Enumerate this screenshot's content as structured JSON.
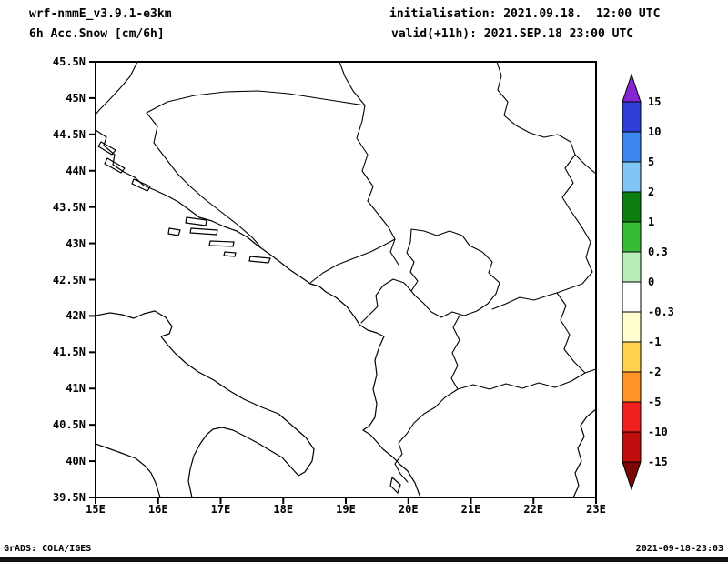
{
  "header": {
    "model_line": "wrf-nmmE_v3.9.1-e3km",
    "field_line": "6h Acc.Snow [cm/6h]",
    "init_line": "initialisation: 2021.09.18.  12:00 UTC",
    "valid_line": "valid(+11h): 2021.SEP.18 23:00 UTC"
  },
  "footer": {
    "left": "GrADS: COLA/IGES",
    "right": "2021-09-18-23:03"
  },
  "axes": {
    "y_ticks": [
      "45.5N",
      "45N",
      "44.5N",
      "44N",
      "43.5N",
      "43N",
      "42.5N",
      "42N",
      "41.5N",
      "41N",
      "40.5N",
      "40N",
      "39.5N"
    ],
    "x_ticks": [
      "15E",
      "16E",
      "17E",
      "18E",
      "19E",
      "20E",
      "21E",
      "22E",
      "23E"
    ]
  },
  "colorbar": {
    "unit_hint": "cm/6h",
    "labels": [
      "15",
      "10",
      "5",
      "2",
      "1",
      "0.3",
      "0",
      "-0.3",
      "-1",
      "-2",
      "-5",
      "-10",
      "-15"
    ],
    "arrow_top_color": "#8426d4",
    "arrow_bottom_color": "#7c0606",
    "segment_colors": [
      "#2e3fd8",
      "#3c86f0",
      "#7fc6f5",
      "#0d7f12",
      "#35bd35",
      "#b9edb9",
      "#ffffff",
      "#ffffcf",
      "#ffd24f",
      "#ff9429",
      "#f01f1f",
      "#bf0d0d"
    ],
    "frame_color": "#000000"
  }
}
